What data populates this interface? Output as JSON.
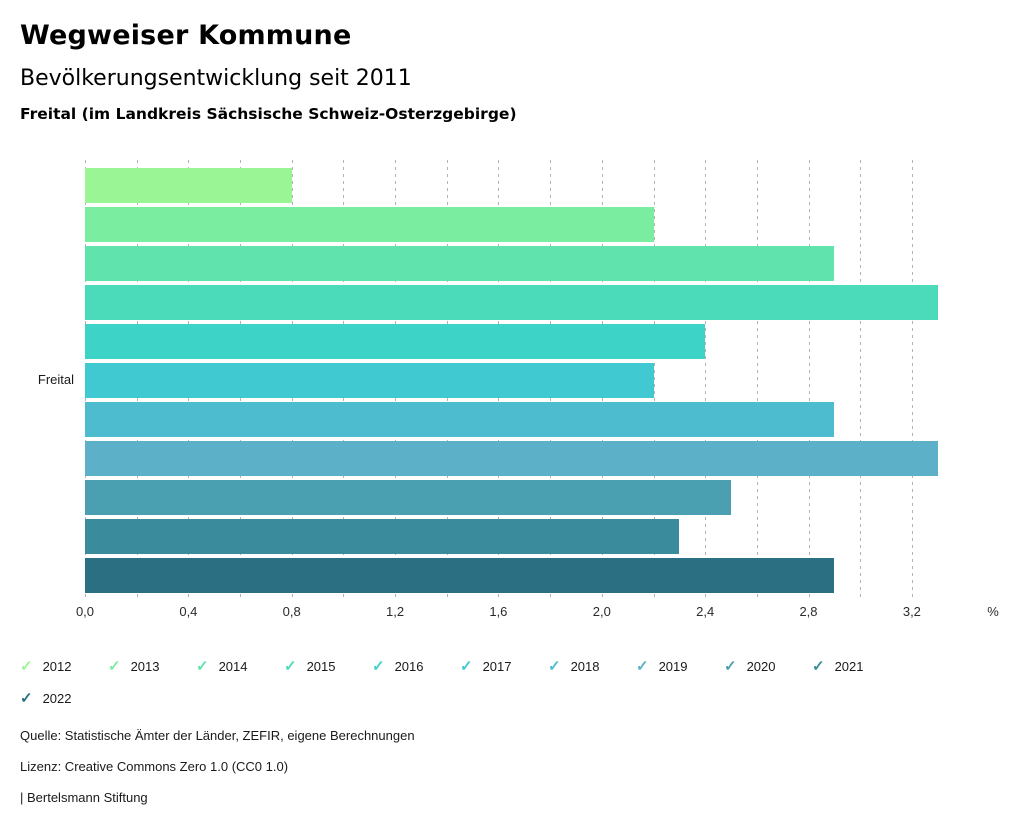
{
  "header": {
    "title": "Wegweiser Kommune",
    "subtitle": "Bevölkerungsentwicklung seit 2011",
    "region": "Freital (im Landkreis Sächsische Schweiz-Osterzgebirge)"
  },
  "chart_data": {
    "type": "bar",
    "orientation": "horizontal",
    "title": "Bevölkerungsentwicklung seit 2011",
    "group_label": "Freital",
    "unit": "%",
    "categories": [
      "2012",
      "2013",
      "2014",
      "2015",
      "2016",
      "2017",
      "2018",
      "2019",
      "2020",
      "2021",
      "2022"
    ],
    "values": [
      0.8,
      2.2,
      2.9,
      3.3,
      2.4,
      2.2,
      2.9,
      3.3,
      2.5,
      2.3,
      2.9
    ],
    "colors": [
      "#9AF595",
      "#7BEDA0",
      "#61E3AD",
      "#4BDBBB",
      "#3ED3C7",
      "#40C9D1",
      "#4DBCCE",
      "#5CB1C8",
      "#4AA0B1",
      "#3A8B9C",
      "#2A7082"
    ],
    "xlim": [
      0,
      3.4
    ],
    "x_grid": {
      "min": 0,
      "max": 3.2,
      "step": 0.2
    },
    "tick_step": 0.4,
    "tick_labels": [
      "0,0",
      "0,4",
      "0,8",
      "1,2",
      "1,6",
      "2,0",
      "2,4",
      "2,8",
      "3,2"
    ],
    "grid": true,
    "legend_position": "bottom",
    "legend_icon": "check-icon"
  },
  "footer": {
    "source": "Quelle: Statistische Ämter der Länder, ZEFIR, eigene Berechnungen",
    "license": "Lizenz: Creative Commons Zero 1.0 (CC0 1.0)",
    "attribution": "| Bertelsmann Stiftung"
  }
}
